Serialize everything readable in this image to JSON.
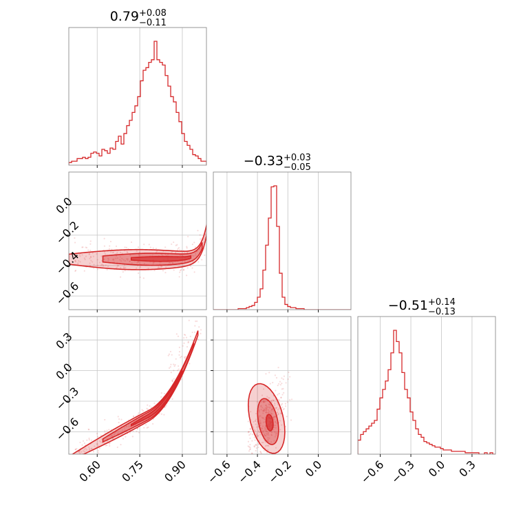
{
  "chart_data": {
    "type": "corner",
    "color": "#d62728",
    "parameters": [
      {
        "title": {
          "value": "0.79",
          "plus": "+0.08",
          "minus": "−0.11"
        },
        "range": [
          0.5,
          0.985
        ],
        "ticks": [
          0.6,
          0.75,
          0.9
        ],
        "tick_labels": [
          "0.60",
          "0.75",
          "0.90"
        ]
      },
      {
        "title": {
          "value": "−0.33",
          "plus": "+0.03",
          "minus": "−0.05"
        },
        "range": [
          -0.69,
          0.215
        ],
        "ticks": [
          -0.6,
          -0.4,
          -0.2,
          0.0
        ],
        "tick_labels": [
          "−0.6",
          "−0.4",
          "−0.2",
          "0.0"
        ]
      },
      {
        "title": {
          "value": "−0.51",
          "plus": "+0.14",
          "minus": "−0.13"
        },
        "range": [
          -0.82,
          0.53
        ],
        "ticks": [
          -0.6,
          -0.3,
          0.0,
          0.3
        ],
        "tick_labels": [
          "−0.6",
          "−0.3",
          "0.0",
          "0.3"
        ]
      }
    ],
    "histograms": [
      {
        "edges": [
          0.5,
          0.985
        ],
        "counts": [
          2,
          3,
          3,
          5,
          5,
          6,
          5,
          6,
          9,
          10,
          9,
          7,
          12,
          11,
          9,
          13,
          12,
          18,
          22,
          16,
          24,
          30,
          34,
          40,
          45,
          52,
          64,
          72,
          74,
          78,
          80,
          94,
          80,
          78,
          76,
          68,
          60,
          52,
          48,
          40,
          33,
          24,
          18,
          15,
          12,
          8,
          7,
          5,
          3,
          3
        ]
      },
      {
        "edges": [
          -0.69,
          0.215
        ],
        "counts": [
          0,
          0,
          0,
          0,
          0,
          0,
          0,
          0,
          0,
          1,
          1,
          1,
          2,
          3,
          4,
          7,
          12,
          20,
          38,
          62,
          88,
          118,
          119,
          80,
          35,
          12,
          5,
          3,
          2,
          2,
          1,
          1,
          1,
          0,
          0,
          0,
          0,
          0,
          0,
          0,
          0,
          0,
          0,
          0,
          0,
          0,
          0,
          0,
          0,
          0
        ]
      },
      {
        "edges": [
          -0.82,
          0.53
        ],
        "counts": [
          10,
          14,
          16,
          18,
          20,
          22,
          24,
          32,
          40,
          46,
          52,
          60,
          72,
          88,
          80,
          72,
          58,
          46,
          40,
          30,
          24,
          18,
          14,
          12,
          9,
          8,
          7,
          6,
          5,
          5,
          4,
          3,
          3,
          3,
          2,
          2,
          2,
          2,
          2,
          1,
          1,
          1,
          1,
          1,
          0,
          0,
          1,
          0,
          1,
          0
        ]
      }
    ]
  }
}
